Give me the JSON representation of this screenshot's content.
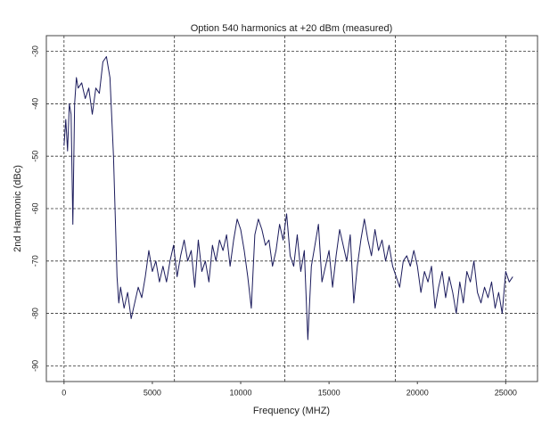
{
  "chart_data": {
    "type": "line",
    "title": "Option 540 harmonics at +20 dBm (measured)",
    "xlabel": "Frequency (MHZ)",
    "ylabel": "2nd Harmonic (dBc)",
    "x": [
      0,
      100,
      200,
      300,
      400,
      500,
      600,
      700,
      800,
      1000,
      1200,
      1400,
      1600,
      1800,
      2000,
      2200,
      2400,
      2600,
      2800,
      3000,
      3100,
      3200,
      3400,
      3600,
      3800,
      4000,
      4200,
      4400,
      4600,
      4800,
      5000,
      5200,
      5400,
      5600,
      5800,
      6000,
      6200,
      6400,
      6600,
      6800,
      7000,
      7200,
      7400,
      7600,
      7800,
      8000,
      8200,
      8400,
      8600,
      8800,
      9000,
      9200,
      9400,
      9600,
      9800,
      10000,
      10200,
      10400,
      10600,
      10800,
      11000,
      11200,
      11400,
      11600,
      11800,
      12000,
      12200,
      12400,
      12600,
      12800,
      13000,
      13200,
      13400,
      13600,
      13800,
      14000,
      14200,
      14400,
      14600,
      14800,
      15000,
      15200,
      15400,
      15600,
      15800,
      16000,
      16200,
      16400,
      16600,
      16800,
      17000,
      17200,
      17400,
      17600,
      17800,
      18000,
      18200,
      18400,
      18600,
      18800,
      19000,
      19200,
      19400,
      19600,
      19800,
      20000,
      20200,
      20400,
      20600,
      20800,
      21000,
      21200,
      21400,
      21600,
      21800,
      22000,
      22200,
      22400,
      22600,
      22800,
      23000,
      23200,
      23400,
      23600,
      23800,
      24000,
      24200,
      24400,
      24600,
      24800,
      25000,
      25200,
      25400
    ],
    "series": [
      {
        "name": "2nd Harmonic",
        "color": "#1b1b5c",
        "values": [
          -48,
          -43,
          -49,
          -40,
          -42,
          -63,
          -40,
          -35,
          -37,
          -36,
          -39,
          -37,
          -42,
          -37,
          -38,
          -32,
          -31,
          -35,
          -50,
          -73,
          -78,
          -75,
          -79,
          -76,
          -81,
          -78,
          -75,
          -77,
          -73,
          -68,
          -72,
          -70,
          -74,
          -71,
          -74,
          -70,
          -67,
          -73,
          -69,
          -66,
          -70,
          -68,
          -75,
          -66,
          -72,
          -70,
          -74,
          -67,
          -70,
          -66,
          -68,
          -65,
          -71,
          -66,
          -62,
          -64,
          -68,
          -73,
          -79,
          -65,
          -62,
          -64,
          -67,
          -66,
          -71,
          -68,
          -63,
          -66,
          -61,
          -69,
          -71,
          -65,
          -72,
          -68,
          -85,
          -71,
          -67,
          -63,
          -74,
          -71,
          -68,
          -75,
          -69,
          -64,
          -67,
          -70,
          -65,
          -78,
          -71,
          -66,
          -62,
          -66,
          -69,
          -64,
          -68,
          -66,
          -70,
          -67,
          -71,
          -73,
          -75,
          -70,
          -69,
          -71,
          -68,
          -71,
          -76,
          -72,
          -74,
          -71,
          -79,
          -75,
          -72,
          -77,
          -73,
          -76,
          -80,
          -74,
          -78,
          -72,
          -74,
          -70,
          -76,
          -78,
          -75,
          -77,
          -74,
          -79,
          -76,
          -80,
          -72,
          -74,
          -73
        ]
      }
    ],
    "xlim": [
      -1000,
      26800
    ],
    "ylim": [
      -93,
      -27
    ],
    "xticks": [
      0,
      5000,
      10000,
      15000,
      20000,
      25000
    ],
    "yticks": [
      -30,
      -40,
      -50,
      -60,
      -70,
      -80,
      -90
    ],
    "xgrid": [
      0,
      6250,
      12500,
      18750,
      25000
    ],
    "grid": true
  }
}
